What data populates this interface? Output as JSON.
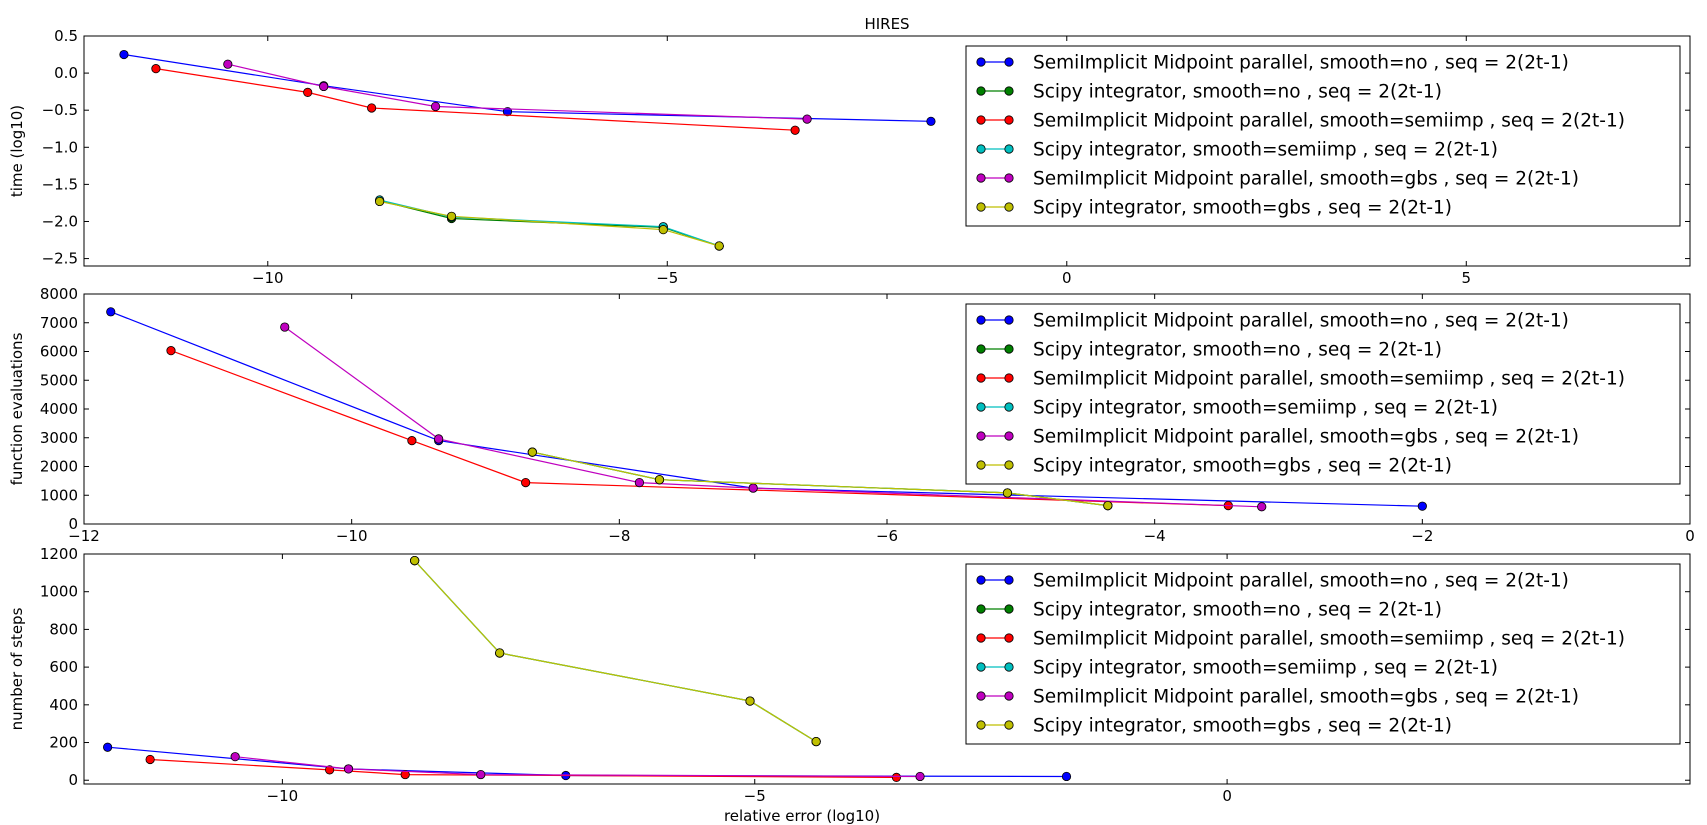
{
  "chart_data": [
    {
      "type": "line",
      "title": "HIRES",
      "xlabel": "",
      "ylabel": "time (log10)",
      "xlim": [
        -12.3,
        7.8
      ],
      "ylim": [
        -2.6,
        0.5
      ],
      "xticks": [
        -10,
        -5,
        0,
        5
      ],
      "xtick_labels": [
        "−10",
        "−5",
        "0",
        "5"
      ],
      "yticks": [
        0.5,
        0.0,
        -0.5,
        -1.0,
        -1.5,
        -2.0,
        -2.5
      ],
      "ytick_labels": [
        "0.5",
        "0.0",
        "−0.5",
        "−1.0",
        "−1.5",
        "−2.0",
        "−2.5"
      ],
      "legend_position": "top-right",
      "series": [
        {
          "name": "SemiImplicit Midpoint parallel, smooth=no , seq = 2(2t-1)",
          "color": "#0000ff",
          "x": [
            -11.8,
            -9.3,
            -7.0,
            -1.7
          ],
          "y": [
            0.25,
            -0.17,
            -0.52,
            -0.65
          ]
        },
        {
          "name": "Scipy integrator, smooth=no , seq = 2(2t-1)",
          "color": "#008000",
          "x": [
            -8.6,
            -7.7,
            -5.05,
            -4.35
          ],
          "y": [
            -1.72,
            -1.96,
            -2.08,
            -2.33
          ]
        },
        {
          "name": "SemiImplicit Midpoint parallel, smooth=semiimp , seq = 2(2t-1)",
          "color": "#ff0000",
          "x": [
            -11.4,
            -9.5,
            -8.7,
            -3.4
          ],
          "y": [
            0.06,
            -0.26,
            -0.47,
            -0.77
          ]
        },
        {
          "name": "Scipy integrator, smooth=semiimp , seq = 2(2t-1)",
          "color": "#00bfbf",
          "x": [
            -8.6,
            -7.7,
            -5.05,
            -4.35
          ],
          "y": [
            -1.71,
            -1.94,
            -2.07,
            -2.33
          ]
        },
        {
          "name": "SemiImplicit Midpoint parallel, smooth=gbs , seq = 2(2t-1)",
          "color": "#bf00bf",
          "x": [
            -10.5,
            -9.3,
            -7.9,
            -3.25
          ],
          "y": [
            0.12,
            -0.18,
            -0.45,
            -0.62
          ]
        },
        {
          "name": "Scipy integrator, smooth=gbs , seq = 2(2t-1)",
          "color": "#bfbf00",
          "x": [
            -8.6,
            -7.7,
            -5.05,
            -4.35
          ],
          "y": [
            -1.73,
            -1.93,
            -2.11,
            -2.33
          ]
        }
      ]
    },
    {
      "type": "line",
      "title": "",
      "xlabel": "",
      "ylabel": "function evaluations",
      "xlim": [
        -12,
        0
      ],
      "ylim": [
        0,
        8000
      ],
      "xticks": [
        -12,
        -10,
        -8,
        -6,
        -4,
        -2,
        0
      ],
      "xtick_labels": [
        "−12",
        "−10",
        "−8",
        "−6",
        "−4",
        "−2",
        "0"
      ],
      "yticks": [
        0,
        1000,
        2000,
        3000,
        4000,
        5000,
        6000,
        7000,
        8000
      ],
      "ytick_labels": [
        "0",
        "1000",
        "2000",
        "3000",
        "4000",
        "5000",
        "6000",
        "7000",
        "8000"
      ],
      "legend_position": "top-right",
      "series": [
        {
          "name": "SemiImplicit Midpoint parallel, smooth=no , seq = 2(2t-1)",
          "color": "#0000ff",
          "x": [
            -11.8,
            -9.35,
            -7.0,
            -2.0
          ],
          "y": [
            7380,
            2900,
            1250,
            620
          ]
        },
        {
          "name": "Scipy integrator, smooth=no , seq = 2(2t-1)",
          "color": "#008000",
          "x": [
            -8.65,
            -7.7,
            -5.1,
            -4.35
          ],
          "y": [
            2500,
            1540,
            1080,
            640
          ]
        },
        {
          "name": "SemiImplicit Midpoint parallel, smooth=semiimp , seq = 2(2t-1)",
          "color": "#ff0000",
          "x": [
            -11.35,
            -9.55,
            -8.7,
            -3.45
          ],
          "y": [
            6030,
            2900,
            1440,
            640
          ]
        },
        {
          "name": "Scipy integrator, smooth=semiimp , seq = 2(2t-1)",
          "color": "#00bfbf",
          "x": [
            -8.65,
            -7.7,
            -5.1,
            -4.35
          ],
          "y": [
            2500,
            1540,
            1080,
            640
          ]
        },
        {
          "name": "SemiImplicit Midpoint parallel, smooth=gbs , seq = 2(2t-1)",
          "color": "#bf00bf",
          "x": [
            -10.5,
            -9.35,
            -7.85,
            -7.0,
            -3.2
          ],
          "y": [
            6850,
            2960,
            1440,
            1250,
            600
          ]
        },
        {
          "name": "Scipy integrator, smooth=gbs , seq = 2(2t-1)",
          "color": "#bfbf00",
          "x": [
            -8.65,
            -7.7,
            -5.1,
            -4.35
          ],
          "y": [
            2500,
            1540,
            1080,
            640
          ]
        }
      ]
    },
    {
      "type": "line",
      "title": "",
      "xlabel": "relative error (log10)",
      "ylabel": "number of steps",
      "xlim": [
        -12.1,
        4.9
      ],
      "ylim": [
        -20,
        1200
      ],
      "xticks": [
        -10,
        -5,
        0
      ],
      "xtick_labels": [
        "−10",
        "−5",
        "0"
      ],
      "yticks": [
        0,
        200,
        400,
        600,
        800,
        1000,
        1200
      ],
      "ytick_labels": [
        "0",
        "200",
        "400",
        "600",
        "800",
        "1000",
        "1200"
      ],
      "legend_position": "top-right",
      "series": [
        {
          "name": "SemiImplicit Midpoint parallel, smooth=no , seq = 2(2t-1)",
          "color": "#0000ff",
          "x": [
            -11.85,
            -9.3,
            -7.0,
            -1.7
          ],
          "y": [
            175,
            60,
            25,
            20
          ]
        },
        {
          "name": "Scipy integrator, smooth=no , seq = 2(2t-1)",
          "color": "#008000",
          "x": [
            -8.6,
            -7.7,
            -5.05,
            -4.35
          ],
          "y": [
            1165,
            675,
            420,
            205
          ]
        },
        {
          "name": "SemiImplicit Midpoint parallel, smooth=semiimp , seq = 2(2t-1)",
          "color": "#ff0000",
          "x": [
            -11.4,
            -9.5,
            -8.7,
            -3.5
          ],
          "y": [
            110,
            55,
            30,
            15
          ]
        },
        {
          "name": "Scipy integrator, smooth=semiimp , seq = 2(2t-1)",
          "color": "#00bfbf",
          "x": [
            -8.6,
            -7.7,
            -5.05,
            -4.35
          ],
          "y": [
            1165,
            675,
            420,
            205
          ]
        },
        {
          "name": "SemiImplicit Midpoint parallel, smooth=gbs , seq = 2(2t-1)",
          "color": "#bf00bf",
          "x": [
            -10.5,
            -9.3,
            -7.9,
            -3.25
          ],
          "y": [
            125,
            60,
            30,
            20
          ]
        },
        {
          "name": "Scipy integrator, smooth=gbs , seq = 2(2t-1)",
          "color": "#bfbf00",
          "x": [
            -8.6,
            -7.7,
            -5.05,
            -4.35
          ],
          "y": [
            1165,
            675,
            420,
            205
          ]
        }
      ]
    }
  ]
}
